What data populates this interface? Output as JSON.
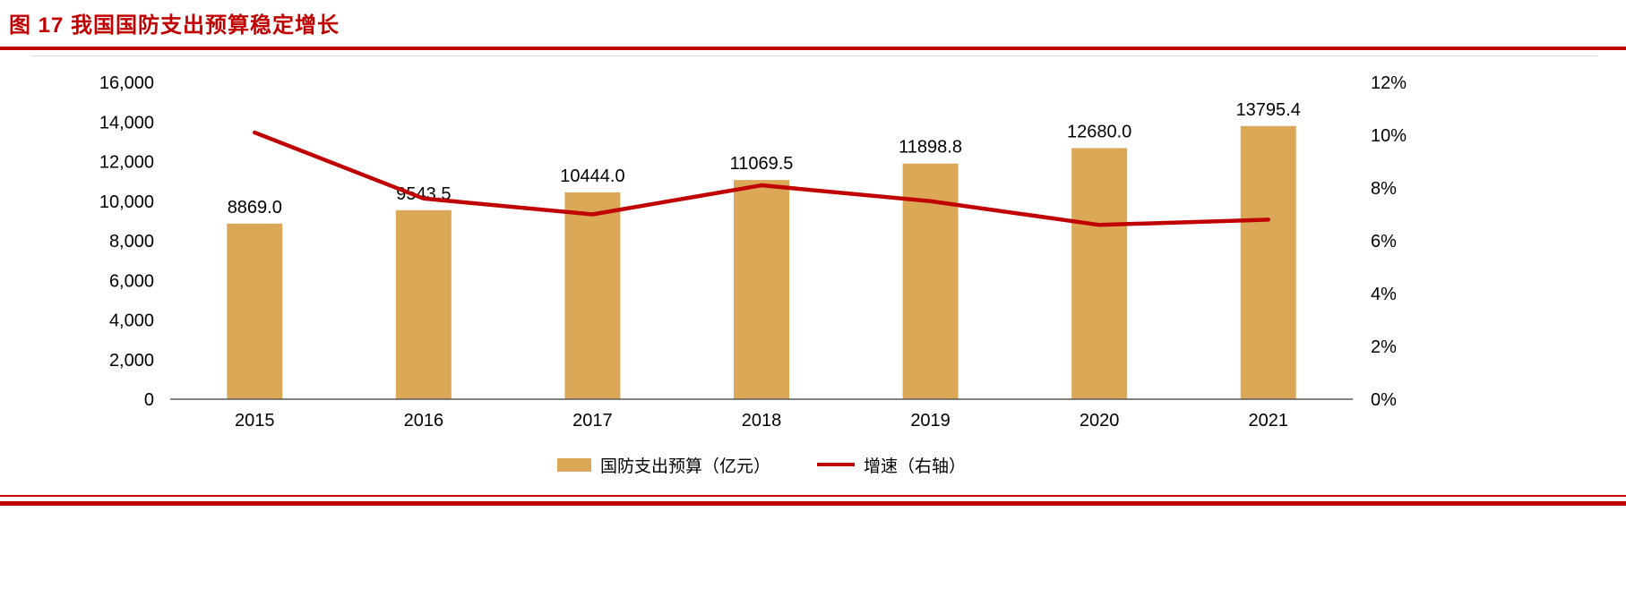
{
  "title": "图 17  我国国防支出预算稳定增长",
  "colors": {
    "accent_red": "#C00000",
    "bar_fill": "#DBA858",
    "line_red": "#C00000",
    "axis_line": "#595959",
    "border_gray": "#D9D9D9"
  },
  "chart_data": {
    "type": "bar+line combo",
    "categories": [
      "2015",
      "2016",
      "2017",
      "2018",
      "2019",
      "2020",
      "2021"
    ],
    "series": [
      {
        "name": "国防支出预算（亿元）",
        "type": "bar",
        "axis": "left",
        "values": [
          8869.0,
          9543.5,
          10444.0,
          11069.5,
          11898.8,
          12680.0,
          13795.4
        ],
        "labels": [
          "8869.0",
          "9543.5",
          "10444.0",
          "11069.5",
          "11898.8",
          "12680.0",
          "13795.4"
        ]
      },
      {
        "name": "增速（右轴）",
        "type": "line",
        "axis": "right",
        "values": [
          10.1,
          7.6,
          7.0,
          8.1,
          7.5,
          6.6,
          6.8
        ]
      }
    ],
    "left_axis": {
      "min": 0,
      "max": 16000,
      "step": 2000,
      "tick_labels": [
        "0",
        "2,000",
        "4,000",
        "6,000",
        "8,000",
        "10,000",
        "12,000",
        "14,000",
        "16,000"
      ]
    },
    "right_axis": {
      "min": 0,
      "max": 12,
      "step": 2,
      "tick_labels": [
        "0%",
        "2%",
        "4%",
        "6%",
        "8%",
        "10%",
        "12%"
      ]
    },
    "legend": [
      "国防支出预算（亿元）",
      "增速（右轴）"
    ],
    "grid": "off",
    "legend_position": "bottom-center"
  }
}
